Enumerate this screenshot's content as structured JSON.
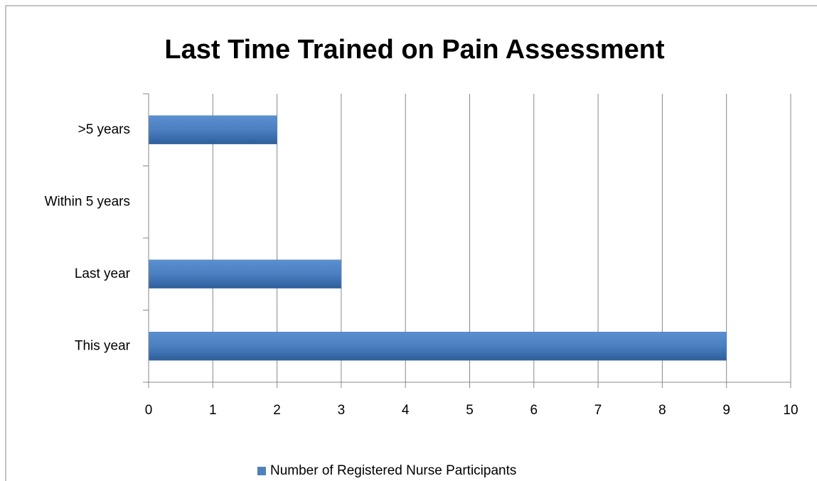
{
  "chart_data": {
    "type": "barh",
    "title": "Last Time Trained on Pain Assessment",
    "categories": [
      "This year",
      "Last year",
      "Within 5 years",
      ">5 years"
    ],
    "series": [
      {
        "name": "Number of Registered Nurse Participants",
        "color": "#4f81bd",
        "values": [
          9,
          3,
          0,
          2
        ]
      }
    ],
    "xlim": [
      0,
      10
    ],
    "xticks": [
      0,
      1,
      2,
      3,
      4,
      5,
      6,
      7,
      8,
      9,
      10
    ],
    "grid": true,
    "legend": "bottom"
  }
}
